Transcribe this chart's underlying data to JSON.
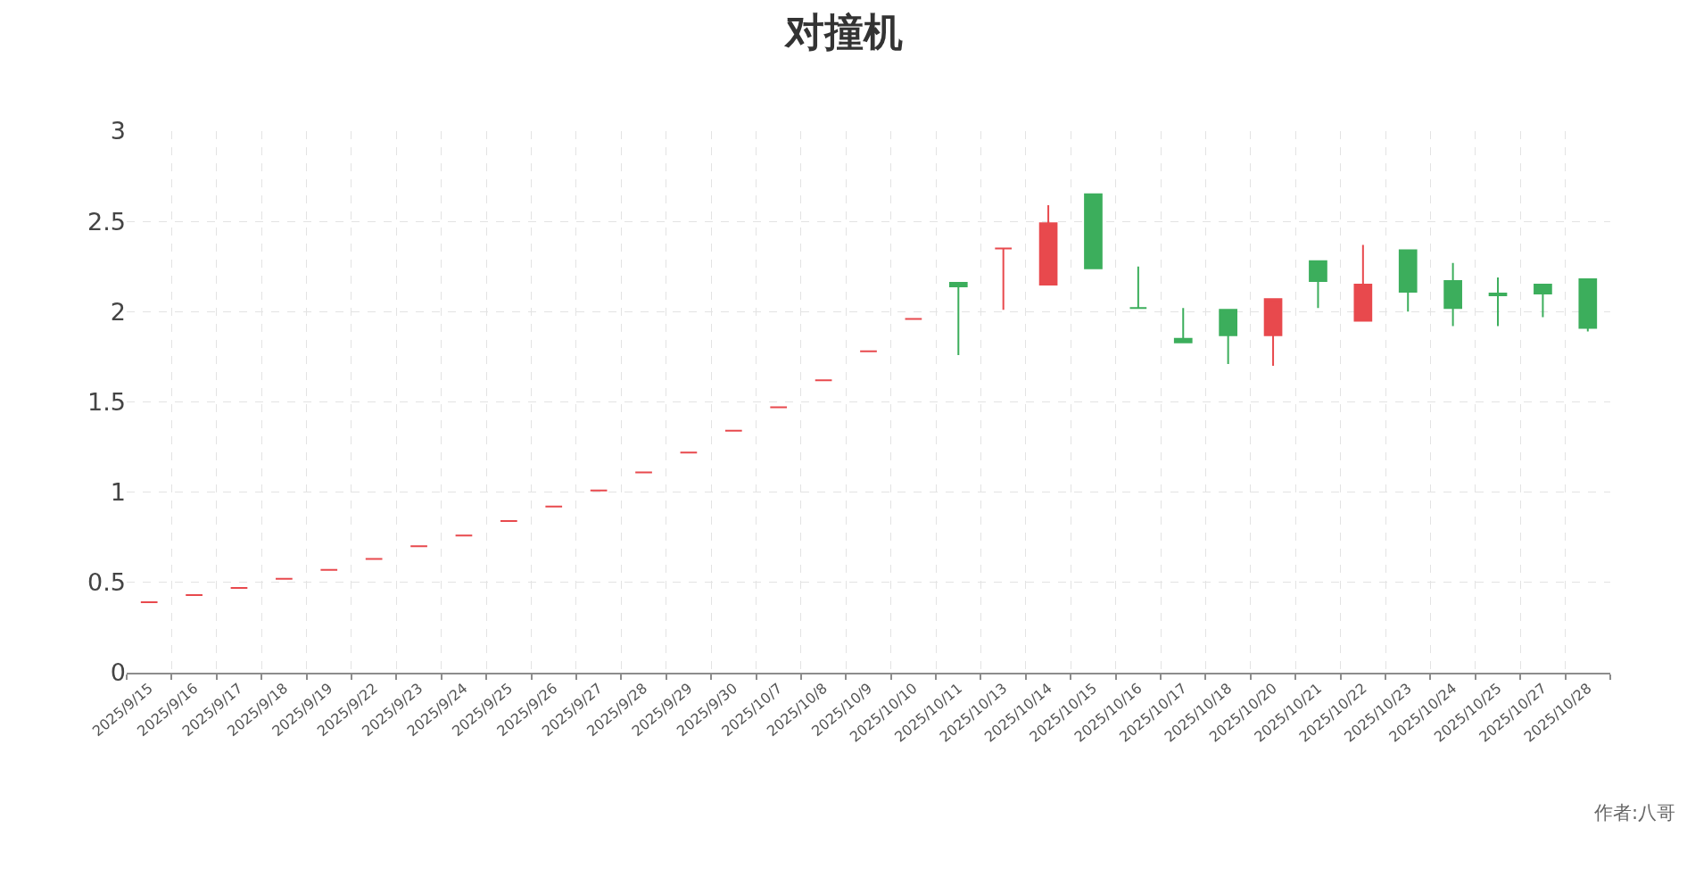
{
  "chart_data": {
    "type": "candlestick",
    "title": "对撞机",
    "categories": [
      "2025/9/15",
      "2025/9/16",
      "2025/9/17",
      "2025/9/18",
      "2025/9/19",
      "2025/9/22",
      "2025/9/23",
      "2025/9/24",
      "2025/9/25",
      "2025/9/26",
      "2025/9/27",
      "2025/9/28",
      "2025/9/29",
      "2025/9/30",
      "2025/10/7",
      "2025/10/8",
      "2025/10/9",
      "2025/10/10",
      "2025/10/11",
      "2025/10/13",
      "2025/10/14",
      "2025/10/15",
      "2025/10/16",
      "2025/10/17",
      "2025/10/18",
      "2025/10/20",
      "2025/10/21",
      "2025/10/22",
      "2025/10/23",
      "2025/10/24",
      "2025/10/25",
      "2025/10/27",
      "2025/10/28"
    ],
    "ohlc": [
      [
        0.39,
        0.39,
        0.39,
        0.39
      ],
      [
        0.43,
        0.43,
        0.43,
        0.43
      ],
      [
        0.47,
        0.47,
        0.47,
        0.47
      ],
      [
        0.52,
        0.52,
        0.52,
        0.52
      ],
      [
        0.57,
        0.57,
        0.57,
        0.57
      ],
      [
        0.63,
        0.63,
        0.63,
        0.63
      ],
      [
        0.7,
        0.7,
        0.7,
        0.7
      ],
      [
        0.76,
        0.76,
        0.76,
        0.76
      ],
      [
        0.84,
        0.84,
        0.84,
        0.84
      ],
      [
        0.92,
        0.92,
        0.92,
        0.92
      ],
      [
        1.01,
        1.01,
        1.01,
        1.01
      ],
      [
        1.11,
        1.11,
        1.11,
        1.11
      ],
      [
        1.22,
        1.22,
        1.22,
        1.22
      ],
      [
        1.34,
        1.34,
        1.34,
        1.34
      ],
      [
        1.47,
        1.47,
        1.47,
        1.47
      ],
      [
        1.62,
        1.62,
        1.62,
        1.62
      ],
      [
        1.78,
        1.78,
        1.78,
        1.78
      ],
      [
        1.96,
        1.96,
        1.96,
        1.96
      ],
      [
        2.16,
        2.16,
        1.76,
        2.14
      ],
      [
        2.35,
        2.35,
        2.01,
        2.35
      ],
      [
        2.15,
        2.59,
        2.15,
        2.49
      ],
      [
        2.65,
        2.65,
        2.24,
        2.24
      ],
      [
        2.02,
        2.25,
        2.02,
        2.02
      ],
      [
        1.85,
        2.02,
        1.83,
        1.83
      ],
      [
        2.01,
        2.01,
        1.71,
        1.87
      ],
      [
        1.87,
        2.07,
        1.7,
        2.07
      ],
      [
        2.28,
        2.28,
        2.02,
        2.17
      ],
      [
        1.95,
        2.37,
        1.95,
        2.15
      ],
      [
        2.34,
        2.34,
        2.0,
        2.11
      ],
      [
        2.17,
        2.27,
        1.92,
        2.02
      ],
      [
        2.1,
        2.19,
        1.92,
        2.09
      ],
      [
        2.15,
        2.15,
        1.97,
        2.1
      ],
      [
        2.18,
        2.18,
        1.89,
        1.91
      ]
    ],
    "colors": [
      "#e8494d",
      "#e8494d",
      "#e8494d",
      "#e8494d",
      "#e8494d",
      "#e8494d",
      "#e8494d",
      "#e8494d",
      "#e8494d",
      "#e8494d",
      "#e8494d",
      "#e8494d",
      "#e8494d",
      "#e8494d",
      "#e8494d",
      "#e8494d",
      "#e8494d",
      "#e8494d",
      "#3cae5c",
      "#e8494d",
      "#e8494d",
      "#3cae5c",
      "#3cae5c",
      "#3cae5c",
      "#3cae5c",
      "#e8494d",
      "#3cae5c",
      "#e8494d",
      "#3cae5c",
      "#3cae5c",
      "#3cae5c",
      "#3cae5c",
      "#3cae5c"
    ],
    "ylim": [
      0,
      3
    ],
    "yticks": [
      0,
      0.5,
      1,
      1.5,
      2,
      2.5,
      3
    ],
    "grid": true,
    "annotations": [
      "作者:八哥"
    ]
  }
}
